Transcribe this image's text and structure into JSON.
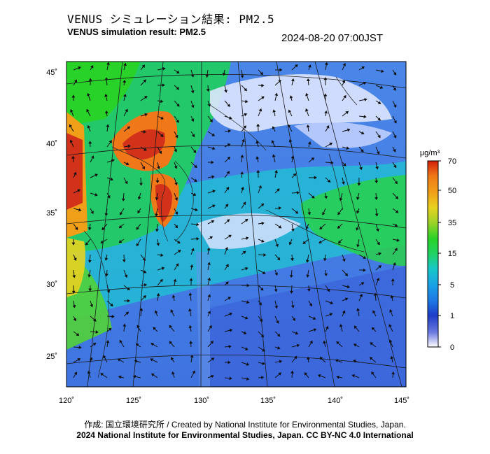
{
  "header": {
    "title_jp": "VENUS シミュレーション結果: PM2.5",
    "title_en": "VENUS simulation result: PM2.5",
    "timestamp": "2024-08-20 07:00JST"
  },
  "map": {
    "lon_labels": [
      "120˚",
      "125˚",
      "130˚",
      "135˚",
      "140˚",
      "145˚"
    ],
    "lat_labels": [
      "45˚",
      "40˚",
      "35˚",
      "30˚",
      "25˚"
    ]
  },
  "colorbar": {
    "unit": "μg/m³",
    "tick_labels": [
      "70",
      "50",
      "35",
      "15",
      "5",
      "1",
      "0"
    ],
    "colors": [
      "#ffffff",
      "#1e3cc8",
      "#1aa0e6",
      "#18c8c8",
      "#28d228",
      "#e8d220",
      "#f07818",
      "#d21e0a"
    ]
  },
  "footer": {
    "credit": "作成: 国立環境研究所 / Created by National Institute for Environmental Studies, Japan.",
    "license": "2024 National Institute for Environmental Studies, Japan. CC BY-NC 4.0 International"
  }
}
